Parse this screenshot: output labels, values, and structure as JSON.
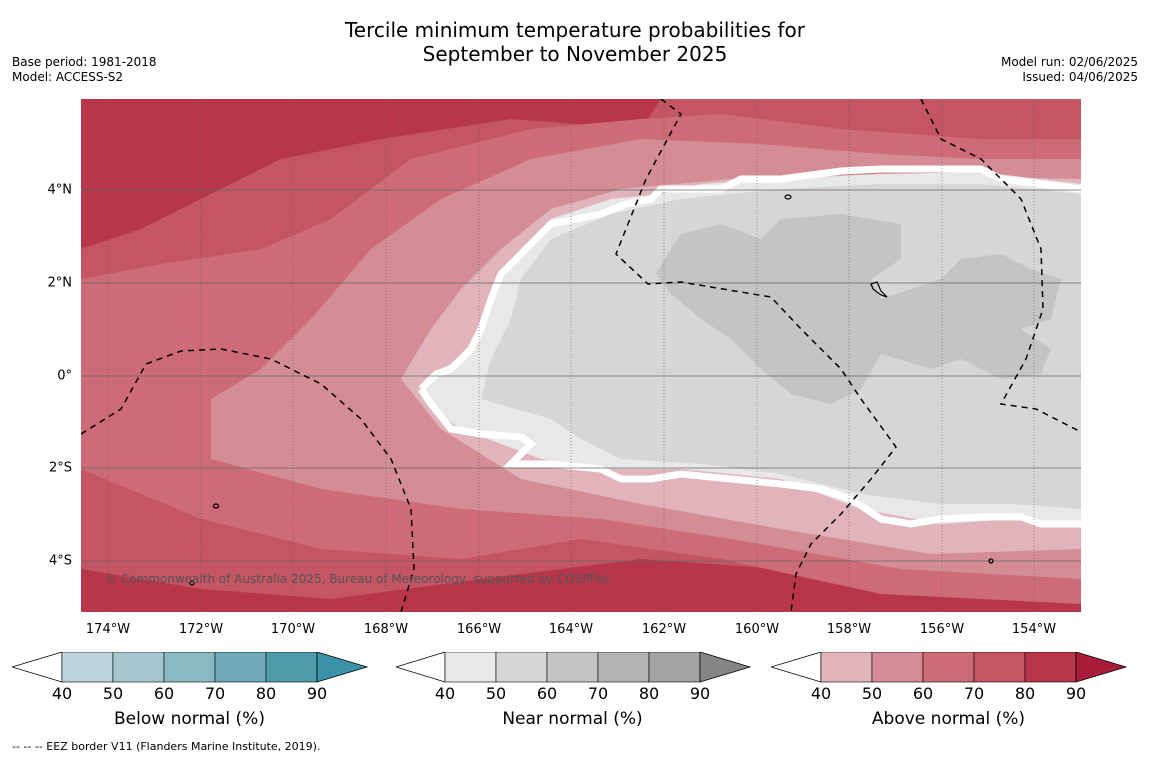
{
  "title": {
    "line1": "Tercile minimum temperature probabilities for",
    "line2": "September to November 2025"
  },
  "meta": {
    "base_period": "Base period: 1981-2018",
    "model": "Model: ACCESS-S2",
    "model_run": "Model run: 02/06/2025",
    "issued": "Issued: 04/06/2025"
  },
  "map": {
    "lon_ticks": [
      "174°W",
      "172°W",
      "170°W",
      "168°W",
      "166°W",
      "164°W",
      "162°W",
      "160°W",
      "158°W",
      "156°W",
      "154°W"
    ],
    "lat_ticks": [
      "4°N",
      "2°N",
      "0°",
      "2°S",
      "4°S"
    ],
    "copyright": "© Commonwealth of Australia 2025, Bureau of Meteorology, supported by COSPPac"
  },
  "colorbars": [
    {
      "title": "Below normal (%)",
      "ticks": [
        "40",
        "50",
        "60",
        "70",
        "80",
        "90"
      ],
      "colors": [
        "#bcd4dc",
        "#a6c7ce",
        "#8ab9c4",
        "#6eaab9",
        "#4f9aab",
        "#3a93a8"
      ]
    },
    {
      "title": "Near normal (%)",
      "ticks": [
        "40",
        "50",
        "60",
        "70",
        "80",
        "90"
      ],
      "colors": [
        "#e8e8e8",
        "#d6d6d6",
        "#c4c4c4",
        "#b4b4b4",
        "#a4a4a4",
        "#858585"
      ]
    },
    {
      "title": "Above normal (%)",
      "ticks": [
        "40",
        "50",
        "60",
        "70",
        "80",
        "90"
      ],
      "colors": [
        "#e0b4ba",
        "#d48c95",
        "#cd6b76",
        "#c45562",
        "#b8364a",
        "#a91d3b"
      ]
    }
  ],
  "footnote": "--  --  -- EEZ border V11 (Flanders Marine Institute, 2019).",
  "colors": {
    "above_40": "#e0b4ba",
    "above_50": "#d48c95",
    "above_60": "#cd6b76",
    "above_70": "#c45562",
    "above_80": "#b8364a",
    "near_40": "#e8e8e8",
    "near_50": "#d6d6d6",
    "near_60": "#c4c4c4"
  }
}
